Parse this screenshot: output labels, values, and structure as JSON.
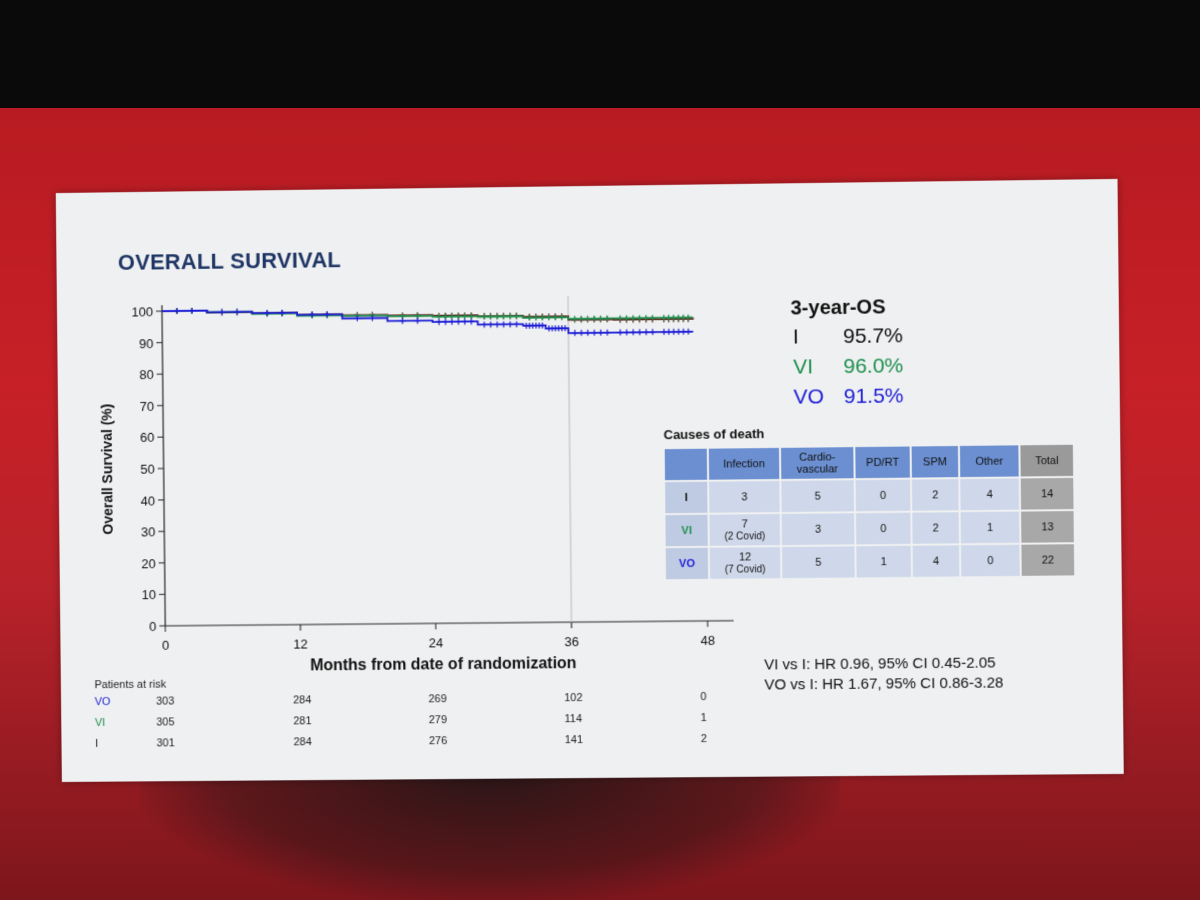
{
  "slide": {
    "title": "OVERALL SURVIVAL"
  },
  "colors": {
    "I": "#6b1a1a",
    "VI": "#1e8f4e",
    "VO": "#1c1cd6",
    "title": "#1f3564",
    "slide_bg": "#eef0f1"
  },
  "chart_data": {
    "type": "line",
    "title": "",
    "xlabel": "Months from date of randomization",
    "ylabel": "Overall Survival (%)",
    "xlim": [
      0,
      48
    ],
    "ylim": [
      0,
      100
    ],
    "x_ticks": [
      "0",
      "12",
      "24",
      "36",
      "48"
    ],
    "y_ticks": [
      "0",
      "10",
      "20",
      "30",
      "40",
      "50",
      "60",
      "70",
      "80",
      "90",
      "100"
    ],
    "reference_line_x": 36,
    "series": [
      {
        "name": "I",
        "color": "#6b1a1a",
        "x": [
          0,
          4,
          8,
          12,
          16,
          20,
          24,
          28,
          32,
          36,
          40,
          44,
          47
        ],
        "y": [
          100,
          99.3,
          99,
          98.3,
          98,
          97.7,
          97.5,
          97.2,
          96.8,
          95.7,
          95.5,
          95.5,
          95.3
        ]
      },
      {
        "name": "VI",
        "color": "#1e8f4e",
        "x": [
          0,
          4,
          8,
          12,
          16,
          20,
          24,
          28,
          32,
          36,
          40,
          44,
          47
        ],
        "y": [
          100,
          99.5,
          98.8,
          98,
          97.8,
          97.5,
          97.2,
          97,
          96.5,
          96,
          96,
          96,
          96
        ]
      },
      {
        "name": "VO",
        "color": "#1c1cd6",
        "x": [
          0,
          4,
          8,
          12,
          16,
          20,
          24,
          28,
          32,
          34,
          36,
          40,
          44,
          47
        ],
        "y": [
          100,
          99.5,
          99,
          98.3,
          97,
          96,
          95.5,
          94.5,
          94,
          93,
          91.5,
          91.5,
          91.5,
          91.5
        ]
      }
    ]
  },
  "risk_table": {
    "header": "Patients at risk",
    "times": [
      0,
      12,
      24,
      36,
      48
    ],
    "rows": [
      {
        "label": "VO",
        "color": "#1c1cd6",
        "values": [
          "303",
          "284",
          "269",
          "102",
          "0"
        ]
      },
      {
        "label": "VI",
        "color": "#1e8f4e",
        "values": [
          "305",
          "281",
          "279",
          "114",
          "1"
        ]
      },
      {
        "label": "I",
        "color": "#222222",
        "values": [
          "301",
          "284",
          "276",
          "141",
          "2"
        ]
      }
    ]
  },
  "os3": {
    "title": "3-year-OS",
    "rows": [
      {
        "arm": "I",
        "value": "95.7%",
        "color": "#111111"
      },
      {
        "arm": "VI",
        "value": "96.0%",
        "color": "#1e8f4e"
      },
      {
        "arm": "VO",
        "value": "91.5%",
        "color": "#1c1cd6"
      }
    ]
  },
  "causes": {
    "title": "Causes of death",
    "headers": [
      "",
      "Infection",
      "Cardio-\nvascular",
      "PD/RT",
      "SPM",
      "Other",
      "Total"
    ],
    "rows": [
      {
        "arm": "I",
        "arm_color": "#111111",
        "cells": [
          "3",
          "5",
          "0",
          "2",
          "4",
          "14"
        ],
        "notes": [
          "",
          "",
          "",
          "",
          "",
          ""
        ]
      },
      {
        "arm": "VI",
        "arm_color": "#1e8f4e",
        "cells": [
          "7",
          "3",
          "0",
          "2",
          "1",
          "13"
        ],
        "notes": [
          "(2 Covid)",
          "",
          "",
          "",
          "",
          ""
        ]
      },
      {
        "arm": "VO",
        "arm_color": "#1c1cd6",
        "cells": [
          "12",
          "5",
          "1",
          "4",
          "0",
          "22"
        ],
        "notes": [
          "(7 Covid)",
          "",
          "",
          "",
          "",
          ""
        ]
      }
    ]
  },
  "hazard_ratios": [
    "VI vs I: HR 0.96, 95% CI 0.45-2.05",
    "VO vs I: HR 1.67, 95% CI 0.86-3.28"
  ]
}
